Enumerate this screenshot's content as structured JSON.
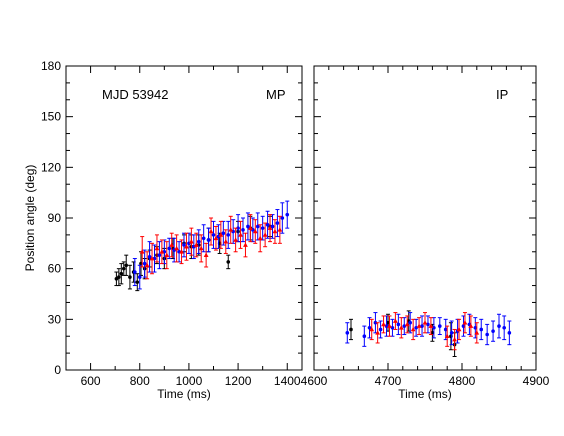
{
  "chart_data": [
    {
      "type": "scatter",
      "panel": "left",
      "annotations": [
        "MJD 53942",
        "MP"
      ],
      "xlabel": "Time (ms)",
      "ylabel": "Position angle (deg)",
      "xlim": [
        500,
        1460
      ],
      "ylim": [
        0,
        180
      ],
      "xticks": [
        600,
        800,
        1000,
        1200,
        1400
      ],
      "yticks": [
        0,
        30,
        60,
        90,
        120,
        150,
        180
      ],
      "series": [
        {
          "color": "#000000",
          "marker": "circle",
          "points": [
            [
              705,
              54,
              4
            ],
            [
              715,
              55,
              5
            ],
            [
              725,
              57,
              6
            ],
            [
              735,
              60,
              4
            ],
            [
              745,
              62,
              6
            ],
            [
              760,
              55,
              7
            ],
            [
              775,
              58,
              6
            ],
            [
              790,
              52,
              5
            ],
            [
              805,
              63,
              7
            ],
            [
              820,
              60,
              6
            ],
            [
              840,
              66,
              5
            ],
            [
              870,
              68,
              5
            ],
            [
              900,
              66,
              6
            ],
            [
              935,
              72,
              6
            ],
            [
              980,
              75,
              5
            ],
            [
              1010,
              73,
              7
            ],
            [
              1040,
              74,
              6
            ],
            [
              1080,
              77,
              7
            ],
            [
              1125,
              75,
              6
            ],
            [
              1160,
              64,
              4
            ],
            [
              1200,
              82,
              6
            ],
            [
              1250,
              84,
              7
            ],
            [
              1330,
              85,
              6
            ]
          ]
        },
        {
          "color": "#0000ff",
          "marker": "circle",
          "points": [
            [
              780,
              58,
              8
            ],
            [
              800,
              55,
              7
            ],
            [
              820,
              63,
              8
            ],
            [
              840,
              67,
              9
            ],
            [
              860,
              66,
              8
            ],
            [
              880,
              68,
              8
            ],
            [
              900,
              70,
              7
            ],
            [
              920,
              72,
              6
            ],
            [
              940,
              71,
              7
            ],
            [
              960,
              70,
              6
            ],
            [
              980,
              74,
              7
            ],
            [
              1000,
              75,
              6
            ],
            [
              1020,
              73,
              7
            ],
            [
              1040,
              76,
              7
            ],
            [
              1060,
              78,
              8
            ],
            [
              1080,
              77,
              7
            ],
            [
              1100,
              80,
              8
            ],
            [
              1120,
              79,
              7
            ],
            [
              1140,
              81,
              7
            ],
            [
              1160,
              80,
              8
            ],
            [
              1180,
              82,
              7
            ],
            [
              1200,
              84,
              8
            ],
            [
              1220,
              83,
              7
            ],
            [
              1240,
              85,
              8
            ],
            [
              1260,
              83,
              7
            ],
            [
              1280,
              85,
              8
            ],
            [
              1300,
              84,
              7
            ],
            [
              1320,
              86,
              8
            ],
            [
              1340,
              85,
              7
            ],
            [
              1360,
              87,
              8
            ],
            [
              1380,
              90,
              9
            ],
            [
              1400,
              92,
              8
            ]
          ]
        },
        {
          "color": "#ff0000",
          "marker": "triangle",
          "points": [
            [
              810,
              70,
              9
            ],
            [
              830,
              62,
              8
            ],
            [
              850,
              66,
              9
            ],
            [
              870,
              72,
              8
            ],
            [
              890,
              70,
              7
            ],
            [
              910,
              68,
              8
            ],
            [
              930,
              74,
              7
            ],
            [
              950,
              72,
              8
            ],
            [
              970,
              70,
              7
            ],
            [
              990,
              73,
              8
            ],
            [
              1010,
              76,
              8
            ],
            [
              1030,
              74,
              7
            ],
            [
              1050,
              72,
              8
            ],
            [
              1070,
              68,
              7
            ],
            [
              1090,
              82,
              8
            ],
            [
              1110,
              78,
              7
            ],
            [
              1130,
              80,
              8
            ],
            [
              1150,
              76,
              7
            ],
            [
              1170,
              83,
              8
            ],
            [
              1190,
              77,
              7
            ],
            [
              1210,
              80,
              8
            ],
            [
              1230,
              74,
              7
            ],
            [
              1250,
              84,
              8
            ],
            [
              1270,
              82,
              7
            ],
            [
              1290,
              78,
              8
            ],
            [
              1310,
              80,
              7
            ],
            [
              1330,
              84,
              8
            ],
            [
              1350,
              82,
              7
            ],
            [
              1370,
              83,
              8
            ]
          ]
        }
      ]
    },
    {
      "type": "scatter",
      "panel": "right",
      "annotations": [
        "IP"
      ],
      "xlabel": "Time (ms)",
      "ylabel": "",
      "xlim": [
        4600,
        4900
      ],
      "ylim": [
        0,
        180
      ],
      "xticks": [
        4600,
        4700,
        4800,
        4900
      ],
      "yticks": [
        0,
        30,
        60,
        90,
        120,
        150,
        180
      ],
      "series": [
        {
          "color": "#000000",
          "marker": "circle",
          "points": [
            [
              4650,
              24,
              6
            ],
            [
              4700,
              28,
              5
            ],
            [
              4728,
              29,
              6
            ],
            [
              4760,
              22,
              5
            ],
            [
              4785,
              20,
              8
            ],
            [
              4790,
              15,
              7
            ]
          ]
        },
        {
          "color": "#0000ff",
          "marker": "circle",
          "points": [
            [
              4645,
              22,
              6
            ],
            [
              4668,
              20,
              6
            ],
            [
              4675,
              25,
              6
            ],
            [
              4683,
              28,
              6
            ],
            [
              4690,
              24,
              5
            ],
            [
              4698,
              26,
              6
            ],
            [
              4706,
              25,
              5
            ],
            [
              4714,
              27,
              6
            ],
            [
              4722,
              26,
              5
            ],
            [
              4730,
              28,
              6
            ],
            [
              4738,
              25,
              5
            ],
            [
              4746,
              26,
              6
            ],
            [
              4754,
              27,
              5
            ],
            [
              4762,
              25,
              6
            ],
            [
              4770,
              26,
              5
            ],
            [
              4778,
              24,
              6
            ],
            [
              4786,
              22,
              7
            ],
            [
              4794,
              23,
              7
            ],
            [
              4802,
              26,
              6
            ],
            [
              4810,
              27,
              6
            ],
            [
              4818,
              25,
              6
            ],
            [
              4826,
              24,
              6
            ],
            [
              4834,
              21,
              6
            ],
            [
              4842,
              23,
              6
            ],
            [
              4850,
              26,
              7
            ],
            [
              4857,
              25,
              7
            ],
            [
              4864,
              22,
              7
            ]
          ]
        },
        {
          "color": "#ff0000",
          "marker": "triangle",
          "points": [
            [
              4678,
              24,
              6
            ],
            [
              4686,
              22,
              6
            ],
            [
              4694,
              27,
              5
            ],
            [
              4702,
              26,
              6
            ],
            [
              4710,
              29,
              5
            ],
            [
              4718,
              25,
              6
            ],
            [
              4726,
              27,
              5
            ],
            [
              4734,
              24,
              6
            ],
            [
              4742,
              26,
              5
            ],
            [
              4750,
              28,
              6
            ],
            [
              4758,
              26,
              5
            ],
            [
              4780,
              20,
              6
            ],
            [
              4790,
              18,
              6
            ],
            [
              4796,
              24,
              6
            ],
            [
              4804,
              28,
              6
            ],
            [
              4812,
              26,
              6
            ],
            [
              4820,
              22,
              6
            ]
          ]
        }
      ]
    }
  ]
}
